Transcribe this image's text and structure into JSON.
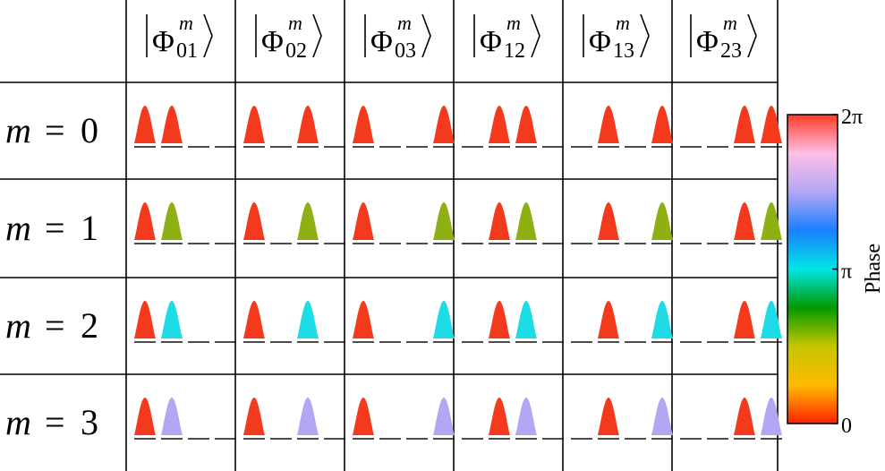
{
  "columns": [
    {
      "symbol": "Φ",
      "sup": "m",
      "sub": "01",
      "peaks": [
        0,
        1
      ]
    },
    {
      "symbol": "Φ",
      "sup": "m",
      "sub": "02",
      "peaks": [
        0,
        2
      ]
    },
    {
      "symbol": "Φ",
      "sup": "m",
      "sub": "03",
      "peaks": [
        0,
        3
      ]
    },
    {
      "symbol": "Φ",
      "sup": "m",
      "sub": "12",
      "peaks": [
        1,
        2
      ]
    },
    {
      "symbol": "Φ",
      "sup": "m",
      "sub": "13",
      "peaks": [
        1,
        3
      ]
    },
    {
      "symbol": "Φ",
      "sup": "m",
      "sub": "23",
      "peaks": [
        2,
        3
      ]
    }
  ],
  "rows": [
    {
      "var": "m",
      "eq": "=",
      "val": "0",
      "phase_color": "#f43a1c"
    },
    {
      "var": "m",
      "eq": "=",
      "val": "1",
      "phase_color": "#8fb012"
    },
    {
      "var": "m",
      "eq": "=",
      "val": "2",
      "phase_color": "#1edce6"
    },
    {
      "var": "m",
      "eq": "=",
      "val": "3",
      "phase_color": "#b4a6f2"
    }
  ],
  "reference_color": "#f43a1c",
  "colorbar": {
    "label": "Phase",
    "tick_top": "2π",
    "tick_mid": "π",
    "tick_bottom": "0",
    "stops": [
      "#ff2200",
      "#ffbb00",
      "#c6c600",
      "#009900",
      "#00e6e6",
      "#1a7fff",
      "#b3a6f5",
      "#ffc0e6",
      "#ff3b25"
    ]
  }
}
